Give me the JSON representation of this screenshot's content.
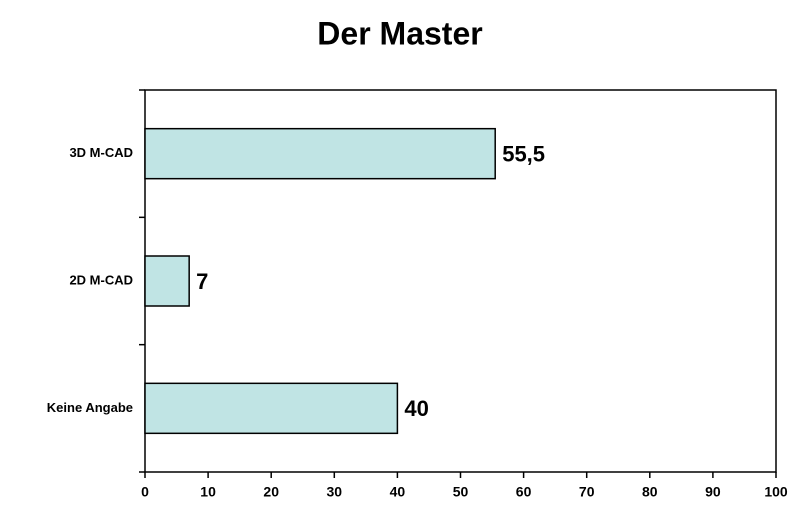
{
  "chart_data": {
    "type": "bar",
    "orientation": "horizontal",
    "title": "Der Master",
    "categories": [
      "3D M-CAD",
      "2D M-CAD",
      "Keine Angabe"
    ],
    "values": [
      55.5,
      7,
      40
    ],
    "value_labels": [
      "55,5",
      "7",
      "40"
    ],
    "color": "#c0e4e4",
    "xlim": [
      0,
      100
    ],
    "xticks": [
      0,
      10,
      20,
      30,
      40,
      50,
      60,
      70,
      80,
      90,
      100
    ],
    "grid": false
  }
}
